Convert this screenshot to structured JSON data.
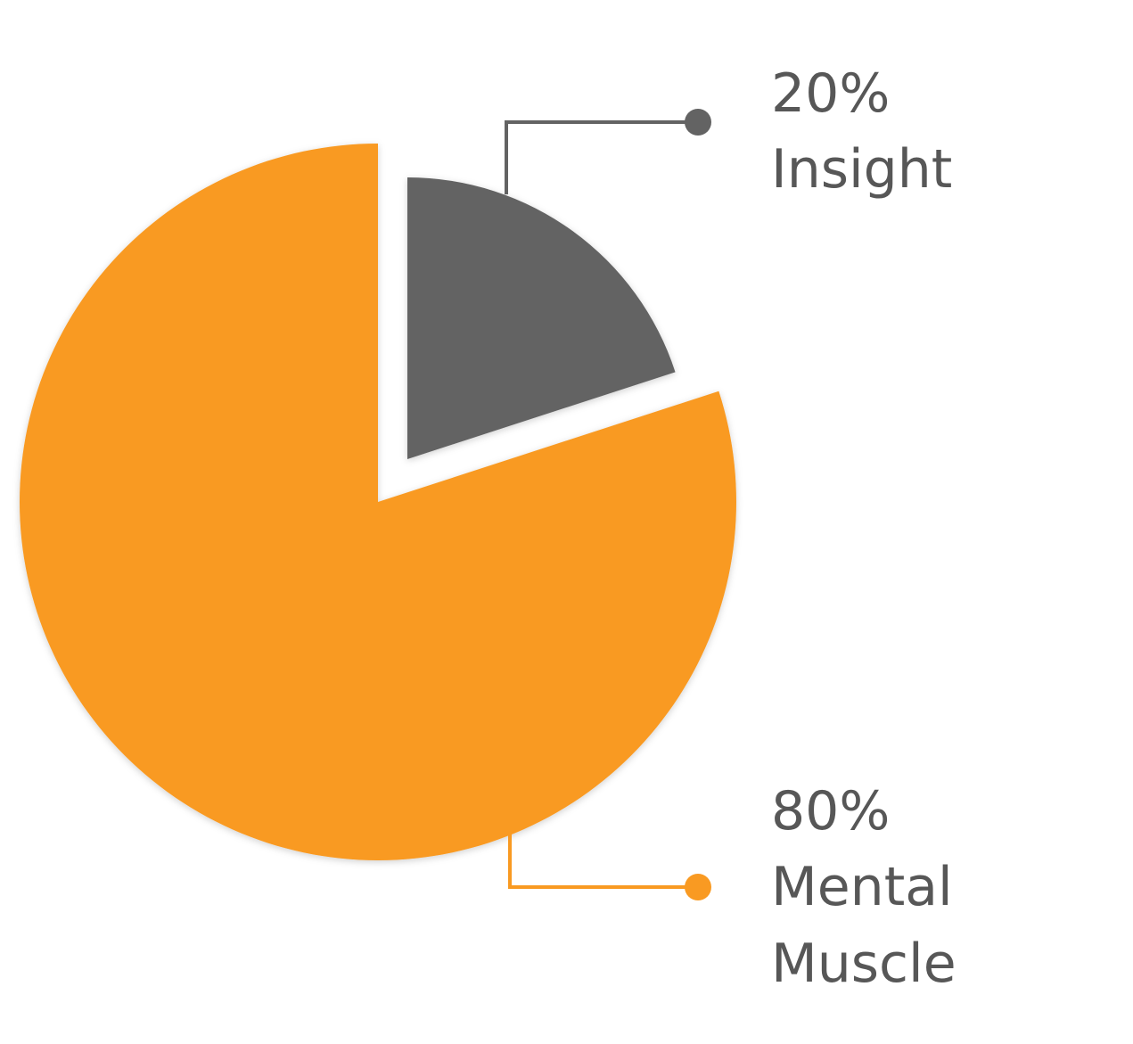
{
  "chart_data": {
    "type": "pie",
    "categories": [
      "Insight",
      "Mental Muscle"
    ],
    "values": [
      20,
      80
    ],
    "value_labels": [
      "20%",
      "80%"
    ],
    "colors": [
      "#636363",
      "#f99a22"
    ]
  }
}
